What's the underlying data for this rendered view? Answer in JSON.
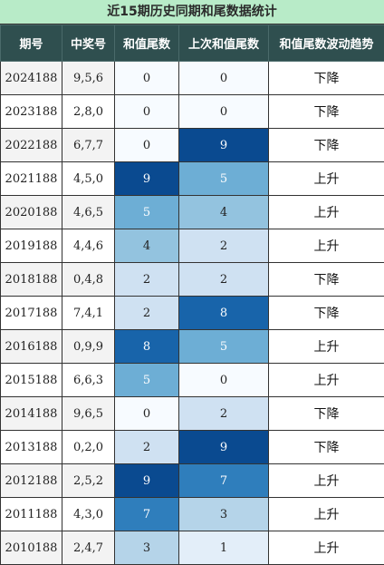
{
  "title": "近15期历史同期和尾数据统计",
  "headers": [
    "期号",
    "中奖号",
    "和值尾数",
    "上次和值尾数",
    "和值尾数波动趋势"
  ],
  "colors": {
    "0": "#f7fbff",
    "1": "#e3eef9",
    "2": "#cfe1f2",
    "3": "#b5d4e9",
    "4": "#93c3df",
    "5": "#6daed5",
    "6": "#4b97c9",
    "7": "#2f7ebc",
    "8": "#1864aa",
    "9": "#0a4a90"
  },
  "rows": [
    {
      "period": "2024188",
      "numbers": "9,5,6",
      "tail": 0,
      "prev_tail": 0,
      "trend": "下降"
    },
    {
      "period": "2023188",
      "numbers": "2,8,0",
      "tail": 0,
      "prev_tail": 0,
      "trend": "下降"
    },
    {
      "period": "2022188",
      "numbers": "6,7,7",
      "tail": 0,
      "prev_tail": 9,
      "trend": "下降"
    },
    {
      "period": "2021188",
      "numbers": "4,5,0",
      "tail": 9,
      "prev_tail": 5,
      "trend": "上升"
    },
    {
      "period": "2020188",
      "numbers": "4,6,5",
      "tail": 5,
      "prev_tail": 4,
      "trend": "上升"
    },
    {
      "period": "2019188",
      "numbers": "4,4,6",
      "tail": 4,
      "prev_tail": 2,
      "trend": "上升"
    },
    {
      "period": "2018188",
      "numbers": "0,4,8",
      "tail": 2,
      "prev_tail": 2,
      "trend": "下降"
    },
    {
      "period": "2017188",
      "numbers": "7,4,1",
      "tail": 2,
      "prev_tail": 8,
      "trend": "下降"
    },
    {
      "period": "2016188",
      "numbers": "0,9,9",
      "tail": 8,
      "prev_tail": 5,
      "trend": "上升"
    },
    {
      "period": "2015188",
      "numbers": "6,6,3",
      "tail": 5,
      "prev_tail": 0,
      "trend": "上升"
    },
    {
      "period": "2014188",
      "numbers": "9,6,5",
      "tail": 0,
      "prev_tail": 2,
      "trend": "下降"
    },
    {
      "period": "2013188",
      "numbers": "0,2,0",
      "tail": 2,
      "prev_tail": 9,
      "trend": "下降"
    },
    {
      "period": "2012188",
      "numbers": "2,5,2",
      "tail": 9,
      "prev_tail": 7,
      "trend": "上升"
    },
    {
      "period": "2011188",
      "numbers": "4,3,0",
      "tail": 7,
      "prev_tail": 3,
      "trend": "上升"
    },
    {
      "period": "2010188",
      "numbers": "2,4,7",
      "tail": 3,
      "prev_tail": 1,
      "trend": "上升"
    }
  ]
}
